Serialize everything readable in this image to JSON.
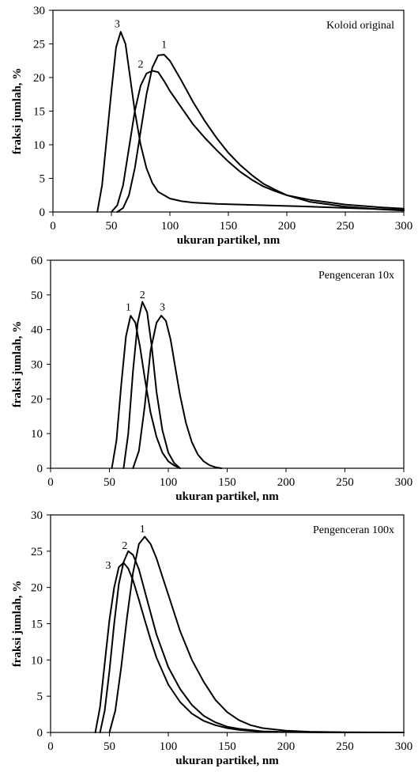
{
  "chart_data": [
    {
      "type": "line",
      "annotation": "Koloid original",
      "xlabel": "ukuran partikel, nm",
      "ylabel": "fraksi jumlah, %",
      "xlim": [
        0,
        300
      ],
      "ylim": [
        0,
        30
      ],
      "xticks": [
        "0",
        "50",
        "100",
        "150",
        "200",
        "250",
        "300"
      ],
      "yticks": [
        "0",
        "5",
        "10",
        "15",
        "20",
        "25",
        "30"
      ],
      "grid": false,
      "series": [
        {
          "name": "1",
          "label_at": [
            95,
            24.4
          ],
          "x": [
            55,
            60,
            65,
            70,
            75,
            80,
            85,
            90,
            95,
            100,
            110,
            120,
            130,
            140,
            150,
            160,
            170,
            180,
            190,
            200,
            220,
            250,
            280,
            300
          ],
          "y": [
            0,
            0.6,
            2.5,
            6.5,
            12,
            17.5,
            21.5,
            23.3,
            23.4,
            22.5,
            19.5,
            16.3,
            13.5,
            11,
            8.8,
            7,
            5.5,
            4.2,
            3.3,
            2.5,
            1.5,
            0.8,
            0.4,
            0.2
          ]
        },
        {
          "name": "2",
          "label_at": [
            75,
            21.5
          ],
          "x": [
            50,
            55,
            60,
            65,
            70,
            75,
            80,
            85,
            90,
            95,
            100,
            110,
            120,
            130,
            140,
            150,
            160,
            170,
            180,
            190,
            200,
            220,
            250,
            280,
            300
          ],
          "y": [
            0,
            1,
            4,
            9.5,
            15,
            18.8,
            20.6,
            21,
            20.8,
            19.5,
            18,
            15.5,
            13,
            11,
            9.2,
            7.5,
            6,
            4.8,
            3.8,
            3.1,
            2.5,
            1.8,
            1.1,
            0.7,
            0.5
          ]
        },
        {
          "name": "3",
          "label_at": [
            55,
            27.5
          ],
          "x": [
            38,
            42,
            46,
            50,
            54,
            58,
            62,
            66,
            70,
            75,
            80,
            85,
            90,
            100,
            110,
            120,
            140,
            160,
            180,
            200,
            220,
            250,
            300
          ],
          "y": [
            0,
            4,
            11,
            18,
            24.5,
            26.8,
            25,
            20,
            15,
            10,
            6.5,
            4.3,
            3,
            2,
            1.6,
            1.4,
            1.2,
            1.1,
            1.0,
            0.9,
            0.8,
            0.6,
            0.3
          ]
        }
      ]
    },
    {
      "type": "line",
      "annotation": "Pengenceran 10x",
      "xlabel": "ukuran partikel, nm",
      "ylabel": "fraksi jumlah, %",
      "xlim": [
        0,
        300
      ],
      "ylim": [
        0,
        60
      ],
      "xticks": [
        "0",
        "50",
        "100",
        "150",
        "200",
        "250",
        "300"
      ],
      "yticks": [
        "0",
        "10",
        "20",
        "30",
        "40",
        "50",
        "60"
      ],
      "grid": false,
      "series": [
        {
          "name": "1",
          "label_at": [
            66,
            45.5
          ],
          "x": [
            52,
            56,
            60,
            64,
            68,
            72,
            76,
            80,
            85,
            90,
            95,
            100,
            105,
            110
          ],
          "y": [
            0,
            8,
            24,
            38,
            44,
            42,
            35,
            26,
            16,
            9,
            4.5,
            2,
            0.8,
            0
          ]
        },
        {
          "name": "2",
          "label_at": [
            78,
            49
          ],
          "x": [
            62,
            66,
            70,
            74,
            78,
            82,
            86,
            90,
            95,
            100,
            105,
            110
          ],
          "y": [
            0,
            10,
            28,
            42,
            48,
            45,
            35,
            22,
            11,
            4.5,
            1.5,
            0
          ]
        },
        {
          "name": "3",
          "label_at": [
            95,
            45.5
          ],
          "x": [
            70,
            75,
            80,
            85,
            90,
            94,
            98,
            102,
            106,
            110,
            115,
            120,
            125,
            130,
            135,
            140,
            145
          ],
          "y": [
            0,
            5,
            18,
            34,
            42,
            44,
            42.5,
            37,
            29,
            21,
            13,
            7.5,
            4,
            2,
            0.9,
            0.3,
            0
          ]
        }
      ]
    },
    {
      "type": "line",
      "annotation": "Pengenceran 100x",
      "xlabel": "ukuran partikel, nm",
      "ylabel": "fraksi jumlah, %",
      "xlim": [
        0,
        300
      ],
      "ylim": [
        0,
        30
      ],
      "xticks": [
        "0",
        "50",
        "100",
        "150",
        "200",
        "250",
        "300"
      ],
      "yticks": [
        "0",
        "5",
        "10",
        "15",
        "20",
        "25",
        "30"
      ],
      "grid": false,
      "series": [
        {
          "name": "1",
          "label_at": [
            78,
            27.6
          ],
          "x": [
            50,
            55,
            60,
            65,
            70,
            75,
            80,
            85,
            90,
            95,
            100,
            110,
            120,
            130,
            140,
            150,
            160,
            170,
            180,
            200,
            220,
            250,
            300
          ],
          "y": [
            0,
            3,
            9,
            16,
            22,
            26,
            27,
            26,
            24,
            21.5,
            19,
            14,
            10,
            7,
            4.5,
            2.8,
            1.7,
            1,
            0.6,
            0.25,
            0.1,
            0.03,
            0
          ]
        },
        {
          "name": "2",
          "label_at": [
            63,
            25.3
          ],
          "x": [
            42,
            46,
            50,
            54,
            58,
            62,
            66,
            70,
            75,
            80,
            85,
            90,
            100,
            110,
            120,
            130,
            140,
            150,
            160,
            180,
            200,
            250,
            300
          ],
          "y": [
            0,
            3,
            8.5,
            15,
            20.5,
            23.5,
            25,
            24.5,
            22.5,
            19.5,
            16.5,
            13.5,
            9,
            6,
            3.8,
            2.3,
            1.4,
            0.8,
            0.5,
            0.15,
            0.05,
            0,
            0
          ]
        },
        {
          "name": "3",
          "label_at": [
            49,
            22.6
          ],
          "x": [
            38,
            42,
            46,
            50,
            54,
            58,
            62,
            66,
            70,
            75,
            80,
            85,
            90,
            100,
            110,
            120,
            130,
            140,
            150,
            160,
            180,
            200,
            250,
            300
          ],
          "y": [
            0,
            3.5,
            9.5,
            15.5,
            20,
            22.8,
            23.4,
            22.6,
            21,
            18.3,
            15.5,
            12.8,
            10.3,
            6.6,
            4.2,
            2.6,
            1.6,
            1,
            0.6,
            0.35,
            0.1,
            0.05,
            0,
            0
          ]
        }
      ]
    }
  ]
}
